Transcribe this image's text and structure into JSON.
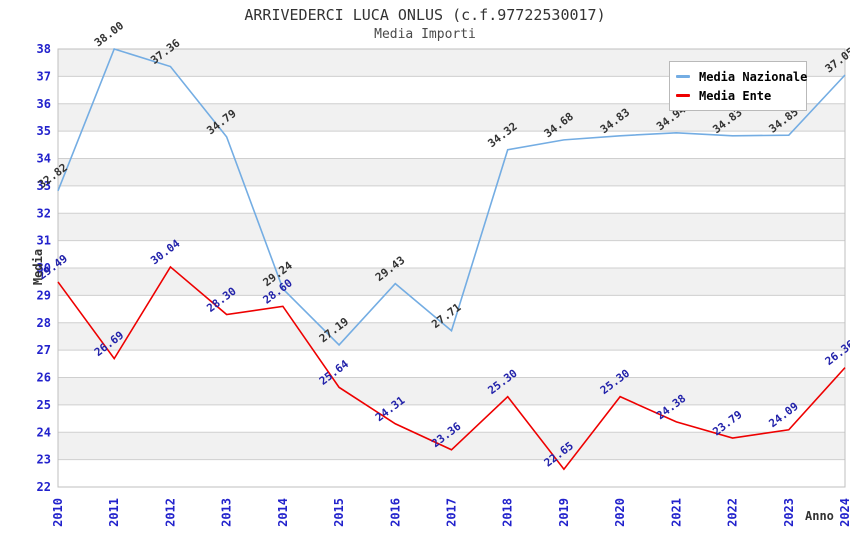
{
  "title": "ARRIVEDERCI LUCA ONLUS (c.f.97722530017)",
  "subtitle": "Media Importi",
  "chart_data": {
    "type": "line",
    "x": [
      2010,
      2011,
      2012,
      2013,
      2014,
      2015,
      2016,
      2017,
      2018,
      2019,
      2020,
      2021,
      2022,
      2023,
      2024
    ],
    "xlabel": "Anno",
    "ylabel": "Media",
    "ylim": [
      22,
      38
    ],
    "ytick_step": 1,
    "grid": true,
    "alternating_bands": true,
    "legend_position": "top-right",
    "series": [
      {
        "name": "Media Nazionale",
        "color": "#74ADE3",
        "label_color": "#333333",
        "values": [
          32.82,
          38.0,
          37.36,
          34.79,
          29.24,
          27.19,
          29.43,
          27.71,
          34.32,
          34.68,
          34.83,
          34.94,
          34.83,
          34.85,
          37.05
        ]
      },
      {
        "name": "Media Ente",
        "color": "#EE0000",
        "label_color": "#2222AA",
        "values": [
          29.49,
          26.69,
          30.04,
          28.3,
          28.6,
          25.64,
          24.31,
          23.36,
          25.3,
          22.65,
          25.3,
          24.38,
          23.79,
          24.09,
          26.36
        ]
      }
    ],
    "style": {
      "tick_label_color": "#2222CC",
      "band_color": "#F1F1F1",
      "grid_color": "#CFCFCF",
      "border_color": "#BFBFBF",
      "title_color": "#333333"
    }
  }
}
